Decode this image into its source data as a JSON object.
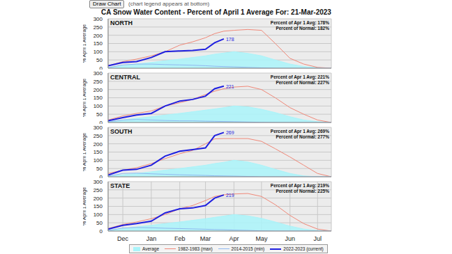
{
  "page": {
    "button": "Draw Chart",
    "note": "(chart legend appears at bottom)",
    "title": "CA Snow Water Content - Percent of April 1 Average For: 21-Mar-2023"
  },
  "chart_data": [
    {
      "type": "line",
      "title": "NORTH",
      "ylabel": "% April 1 Average",
      "annotations": [
        "Percent of Apr 1 Avg: 178%",
        "Percent of Normal: 182%"
      ],
      "tick_labels": "y",
      "grid": true,
      "x": [
        45,
        61,
        76,
        92,
        107,
        123,
        137,
        151,
        161,
        171,
        182,
        197,
        212,
        227,
        243,
        258,
        273,
        288
      ],
      "xlim": [
        45,
        288
      ],
      "xticks": [
        {
          "value": 61,
          "label": "Dec"
        },
        {
          "value": 92,
          "label": "Jan"
        },
        {
          "value": 123,
          "label": "Feb"
        },
        {
          "value": 151,
          "label": "Mar"
        },
        {
          "value": 182,
          "label": "Apr"
        },
        {
          "value": 212,
          "label": "May"
        },
        {
          "value": 243,
          "label": "Jun"
        },
        {
          "value": 273,
          "label": "Jul"
        }
      ],
      "ylim": [
        0,
        300
      ],
      "yticks": [
        0,
        50,
        100,
        150,
        200,
        250,
        300
      ],
      "series": [
        {
          "name": "Average",
          "type": "area",
          "color": "#aaf4fa",
          "values": [
            5,
            15,
            25,
            35,
            45,
            55,
            65,
            75,
            85,
            92,
            100,
            90,
            75,
            50,
            25,
            10,
            3,
            0
          ]
        },
        {
          "name": "1982-1983 (max)",
          "type": "line",
          "color": "#f08878",
          "values": [
            15,
            40,
            55,
            75,
            100,
            140,
            160,
            185,
            210,
            225,
            230,
            235,
            230,
            150,
            60,
            25,
            5,
            0
          ]
        },
        {
          "name": "2014-2015 (min)",
          "type": "line",
          "color": "#8fb8f0",
          "values": [
            3,
            20,
            25,
            25,
            22,
            20,
            18,
            15,
            12,
            10,
            8,
            5,
            2,
            0,
            0,
            0,
            0,
            0
          ]
        },
        {
          "name": "2022-2023 (current)",
          "type": "line",
          "color": "#1f1fe0",
          "values": [
            15,
            35,
            40,
            65,
            100,
            105,
            108,
            115,
            155,
            178,
            null,
            null,
            null,
            null,
            null,
            null,
            null,
            null
          ]
        }
      ]
    },
    {
      "type": "line",
      "title": "CENTRAL",
      "ylabel": "% April 1 Average",
      "annotations": [
        "Percent of Apr 1 Avg: 221%",
        "Percent of Normal: 227%"
      ],
      "tick_labels": "y",
      "grid": true,
      "x": [
        45,
        61,
        76,
        92,
        107,
        123,
        137,
        151,
        161,
        171,
        182,
        197,
        212,
        227,
        243,
        258,
        273,
        288
      ],
      "xlim": [
        45,
        288
      ],
      "xticks": [
        {
          "value": 61,
          "label": "Dec"
        },
        {
          "value": 92,
          "label": "Jan"
        },
        {
          "value": 123,
          "label": "Feb"
        },
        {
          "value": 151,
          "label": "Mar"
        },
        {
          "value": 182,
          "label": "Apr"
        },
        {
          "value": 212,
          "label": "May"
        },
        {
          "value": 243,
          "label": "Jun"
        },
        {
          "value": 273,
          "label": "Jul"
        }
      ],
      "ylim": [
        0,
        300
      ],
      "yticks": [
        0,
        50,
        100,
        150,
        200,
        250,
        300
      ],
      "series": [
        {
          "name": "Average",
          "type": "area",
          "color": "#aaf4fa",
          "values": [
            5,
            15,
            25,
            35,
            45,
            55,
            65,
            75,
            82,
            90,
            100,
            95,
            80,
            60,
            35,
            15,
            5,
            0
          ]
        },
        {
          "name": "1982-1983 (max)",
          "type": "line",
          "color": "#f08878",
          "values": [
            15,
            40,
            55,
            70,
            100,
            120,
            140,
            170,
            190,
            205,
            215,
            220,
            200,
            150,
            90,
            50,
            15,
            0
          ]
        },
        {
          "name": "2014-2015 (min)",
          "type": "line",
          "color": "#8fb8f0",
          "values": [
            3,
            15,
            18,
            15,
            12,
            10,
            10,
            8,
            7,
            6,
            5,
            3,
            1,
            0,
            0,
            0,
            0,
            0
          ]
        },
        {
          "name": "2022-2023 (current)",
          "type": "line",
          "color": "#1f1fe0",
          "values": [
            10,
            30,
            45,
            55,
            100,
            130,
            140,
            160,
            205,
            221,
            null,
            null,
            null,
            null,
            null,
            null,
            null,
            null
          ]
        }
      ]
    },
    {
      "type": "line",
      "title": "SOUTH",
      "ylabel": "% April 1 Average",
      "annotations": [
        "Percent of Apr 1 Avg: 269%",
        "Percent of Normal: 277%"
      ],
      "tick_labels": "y",
      "grid": true,
      "x": [
        45,
        61,
        76,
        92,
        107,
        123,
        137,
        151,
        161,
        171,
        182,
        197,
        212,
        227,
        243,
        258,
        273,
        288
      ],
      "xlim": [
        45,
        288
      ],
      "xticks": [
        {
          "value": 61,
          "label": "Dec"
        },
        {
          "value": 92,
          "label": "Jan"
        },
        {
          "value": 123,
          "label": "Feb"
        },
        {
          "value": 151,
          "label": "Mar"
        },
        {
          "value": 182,
          "label": "Apr"
        },
        {
          "value": 212,
          "label": "May"
        },
        {
          "value": 243,
          "label": "Jun"
        },
        {
          "value": 273,
          "label": "Jul"
        }
      ],
      "ylim": [
        0,
        300
      ],
      "yticks": [
        0,
        50,
        100,
        150,
        200,
        250,
        300
      ],
      "series": [
        {
          "name": "Average",
          "type": "area",
          "color": "#aaf4fa",
          "values": [
            5,
            12,
            20,
            30,
            40,
            50,
            60,
            70,
            80,
            88,
            100,
            90,
            70,
            45,
            20,
            5,
            0,
            0
          ]
        },
        {
          "name": "1982-1983 (max)",
          "type": "line",
          "color": "#f08878",
          "values": [
            20,
            40,
            55,
            80,
            110,
            140,
            160,
            200,
            230,
            232,
            232,
            232,
            215,
            170,
            120,
            70,
            20,
            0
          ]
        },
        {
          "name": "2014-2015 (min)",
          "type": "line",
          "color": "#8fb8f0",
          "values": [
            3,
            20,
            22,
            18,
            15,
            12,
            10,
            8,
            6,
            5,
            4,
            2,
            0,
            0,
            0,
            0,
            0,
            0
          ]
        },
        {
          "name": "2022-2023 (current)",
          "type": "line",
          "color": "#1f1fe0",
          "values": [
            10,
            40,
            45,
            70,
            125,
            155,
            165,
            175,
            250,
            269,
            null,
            null,
            null,
            null,
            null,
            null,
            null,
            null
          ]
        }
      ]
    },
    {
      "type": "line",
      "title": "STATE",
      "ylabel": "% April 1 Average",
      "annotations": [
        "Percent of Apr 1 Avg: 219%",
        "Percent of Normal: 225%"
      ],
      "grid": true,
      "legend": "bottom",
      "x": [
        45,
        61,
        76,
        92,
        107,
        123,
        137,
        151,
        161,
        171,
        182,
        197,
        212,
        227,
        243,
        258,
        273,
        288
      ],
      "xlim": [
        45,
        288
      ],
      "xticks": [
        {
          "value": 61,
          "label": "Dec"
        },
        {
          "value": 92,
          "label": "Jan"
        },
        {
          "value": 123,
          "label": "Feb"
        },
        {
          "value": 151,
          "label": "Mar"
        },
        {
          "value": 182,
          "label": "Apr"
        },
        {
          "value": 212,
          "label": "May"
        },
        {
          "value": 243,
          "label": "Jun"
        },
        {
          "value": 273,
          "label": "Jul"
        }
      ],
      "ylim": [
        0,
        300
      ],
      "yticks": [
        0,
        50,
        100,
        150,
        200,
        250,
        300
      ],
      "series": [
        {
          "name": "Average",
          "type": "area",
          "color": "#aaf4fa",
          "values": [
            5,
            15,
            25,
            35,
            45,
            55,
            65,
            75,
            83,
            91,
            100,
            92,
            77,
            55,
            30,
            12,
            3,
            0
          ]
        },
        {
          "name": "1982-1983 (max)",
          "type": "line",
          "color": "#f08878",
          "values": [
            15,
            40,
            55,
            75,
            100,
            135,
            155,
            185,
            210,
            220,
            225,
            228,
            210,
            160,
            95,
            45,
            12,
            0
          ]
        },
        {
          "name": "2014-2015 (min)",
          "type": "line",
          "color": "#8fb8f0",
          "values": [
            3,
            18,
            22,
            20,
            17,
            15,
            13,
            11,
            9,
            8,
            6,
            4,
            1,
            0,
            0,
            0,
            0,
            0
          ]
        },
        {
          "name": "2022-2023 (current)",
          "type": "line",
          "color": "#1f1fe0",
          "values": [
            12,
            35,
            45,
            60,
            110,
            135,
            140,
            155,
            200,
            219,
            null,
            null,
            null,
            null,
            null,
            null,
            null,
            null
          ]
        }
      ]
    }
  ]
}
